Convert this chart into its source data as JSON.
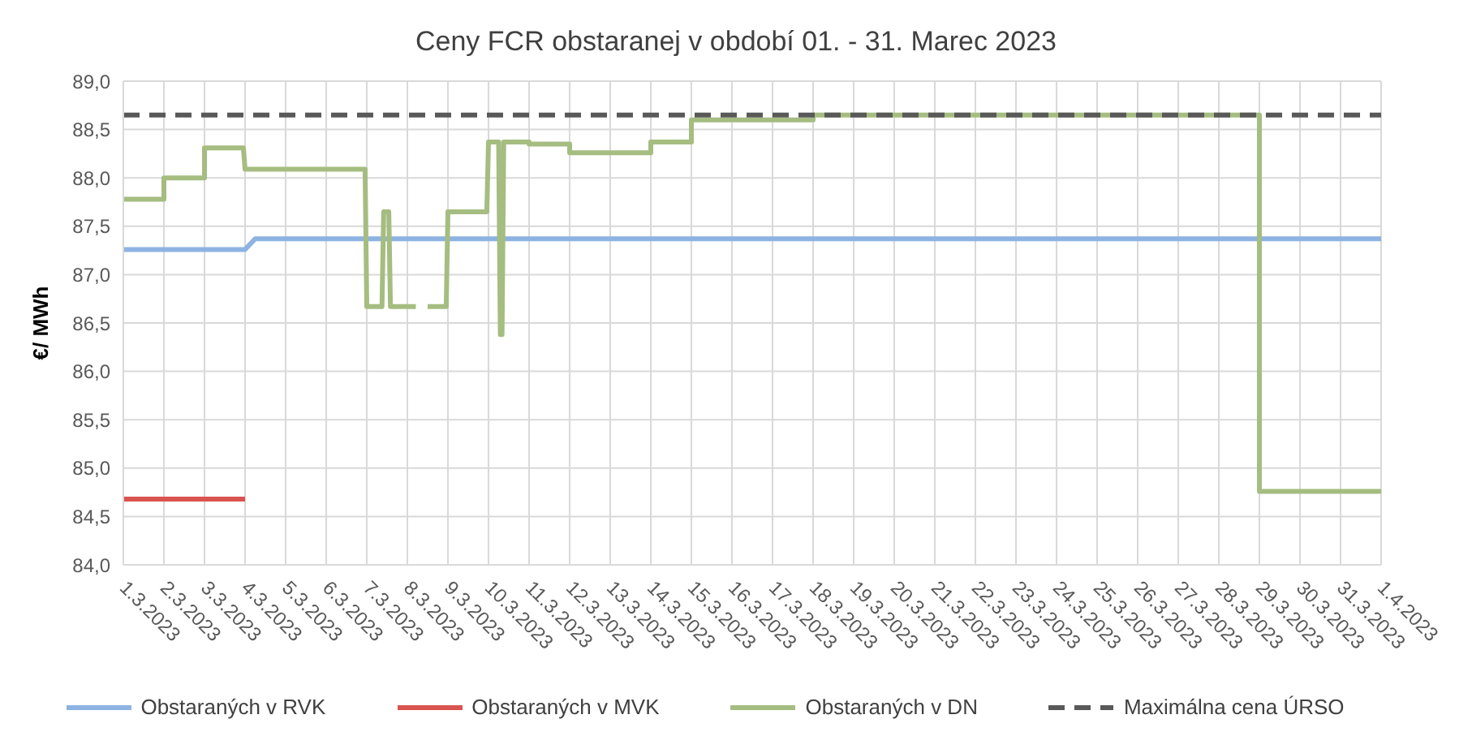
{
  "chart_data": {
    "type": "line",
    "title": "Ceny FCR obstaranej v období 01. - 31. Marec 2023",
    "ylabel": "€/ MWh",
    "ylim": [
      84,
      89
    ],
    "yticks": [
      {
        "value": 84,
        "label": "84,0"
      },
      {
        "value": 84.5,
        "label": "84,5"
      },
      {
        "value": 85,
        "label": "85,0"
      },
      {
        "value": 85.5,
        "label": "85,5"
      },
      {
        "value": 86,
        "label": "86,0"
      },
      {
        "value": 86.5,
        "label": "86,5"
      },
      {
        "value": 87,
        "label": "87,0"
      },
      {
        "value": 87.5,
        "label": "87,5"
      },
      {
        "value": 88,
        "label": "88,0"
      },
      {
        "value": 88.5,
        "label": "88,5"
      },
      {
        "value": 89,
        "label": "89,0"
      }
    ],
    "xlim": [
      "2023-03-01",
      "2023-04-01"
    ],
    "xticks": [
      {
        "value": "2023-03-01",
        "label": "1.3.2023"
      },
      {
        "value": "2023-03-02",
        "label": "2.3.2023"
      },
      {
        "value": "2023-03-03",
        "label": "3.3.2023"
      },
      {
        "value": "2023-03-04",
        "label": "4.3.2023"
      },
      {
        "value": "2023-03-05",
        "label": "5.3.2023"
      },
      {
        "value": "2023-03-06",
        "label": "6.3.2023"
      },
      {
        "value": "2023-03-07",
        "label": "7.3.2023"
      },
      {
        "value": "2023-03-08",
        "label": "8.3.2023"
      },
      {
        "value": "2023-03-09",
        "label": "9.3.2023"
      },
      {
        "value": "2023-03-10",
        "label": "10.3.2023"
      },
      {
        "value": "2023-03-11",
        "label": "11.3.2023"
      },
      {
        "value": "2023-03-12",
        "label": "12.3.2023"
      },
      {
        "value": "2023-03-13",
        "label": "13.3.2023"
      },
      {
        "value": "2023-03-14",
        "label": "14.3.2023"
      },
      {
        "value": "2023-03-15",
        "label": "15.3.2023"
      },
      {
        "value": "2023-03-16",
        "label": "16.3.2023"
      },
      {
        "value": "2023-03-17",
        "label": "17.3.2023"
      },
      {
        "value": "2023-03-18",
        "label": "18.3.2023"
      },
      {
        "value": "2023-03-19",
        "label": "19.3.2023"
      },
      {
        "value": "2023-03-20",
        "label": "20.3.2023"
      },
      {
        "value": "2023-03-21",
        "label": "21.3.2023"
      },
      {
        "value": "2023-03-22",
        "label": "22.3.2023"
      },
      {
        "value": "2023-03-23",
        "label": "23.3.2023"
      },
      {
        "value": "2023-03-24",
        "label": "24.3.2023"
      },
      {
        "value": "2023-03-25",
        "label": "25.3.2023"
      },
      {
        "value": "2023-03-26",
        "label": "26.3.2023"
      },
      {
        "value": "2023-03-27",
        "label": "27.3.2023"
      },
      {
        "value": "2023-03-28",
        "label": "28.3.2023"
      },
      {
        "value": "2023-03-29",
        "label": "29.3.2023"
      },
      {
        "value": "2023-03-30",
        "label": "30.3.2023"
      },
      {
        "value": "2023-03-31",
        "label": "31.3.2023"
      },
      {
        "value": "2023-04-01",
        "label": "1.4.2023"
      }
    ],
    "grid": true,
    "legend": "bottom",
    "marker": "none",
    "series": [
      {
        "name": "Obstaraných v RVK",
        "color": "#8db3e2",
        "x": [
          "2023-03-01",
          "2023-03-04",
          "2023-03-04T06:00",
          "2023-04-01"
        ],
        "values": [
          87.26,
          87.26,
          87.37,
          87.37
        ]
      },
      {
        "name": "Obstaraných v MVK",
        "color": "#d9534f",
        "x": [
          "2023-03-01",
          "2023-03-04"
        ],
        "values": [
          84.68,
          84.68
        ]
      },
      {
        "name": "Obstaraných v DN",
        "color": "#a5bd80",
        "x": [
          "2023-03-01",
          "2023-03-02",
          "2023-03-02",
          "2023-03-03",
          "2023-03-03",
          "2023-03-03T23:00",
          "2023-03-04",
          "2023-03-06T23:00",
          "2023-03-07",
          "2023-03-07T09:00",
          "2023-03-07T10:00",
          "2023-03-07T13:00",
          "2023-03-07T14:00",
          "2023-03-08T05:00",
          "2023-03-08T08:00",
          "2023-03-08T12:00",
          "2023-03-08T23:00",
          "2023-03-09",
          "2023-03-09T23:00",
          "2023-03-10",
          "2023-03-10T06:00",
          "2023-03-10T07:00",
          "2023-03-10T08:00",
          "2023-03-10T09:00",
          "2023-03-11",
          "2023-03-11",
          "2023-03-12",
          "2023-03-12",
          "2023-03-14",
          "2023-03-14",
          "2023-03-15",
          "2023-03-15",
          "2023-03-18",
          "2023-03-18",
          "2023-03-29",
          "2023-03-29",
          "2023-04-01"
        ],
        "values": [
          87.78,
          87.78,
          88.0,
          88.0,
          88.31,
          88.31,
          88.09,
          88.09,
          86.67,
          86.67,
          87.65,
          87.65,
          86.67,
          86.67,
          null,
          86.67,
          86.67,
          87.65,
          87.65,
          88.37,
          88.37,
          86.38,
          86.38,
          88.37,
          88.37,
          88.35,
          88.35,
          88.26,
          88.26,
          88.37,
          88.37,
          88.6,
          88.6,
          88.65,
          88.65,
          84.76,
          84.76
        ]
      },
      {
        "name": "Maximálna cena ÚRSO",
        "color": "#595959",
        "line_style": "dashed",
        "x": [
          "2023-03-01",
          "2023-04-01"
        ],
        "values": [
          88.65,
          88.65
        ]
      }
    ]
  }
}
